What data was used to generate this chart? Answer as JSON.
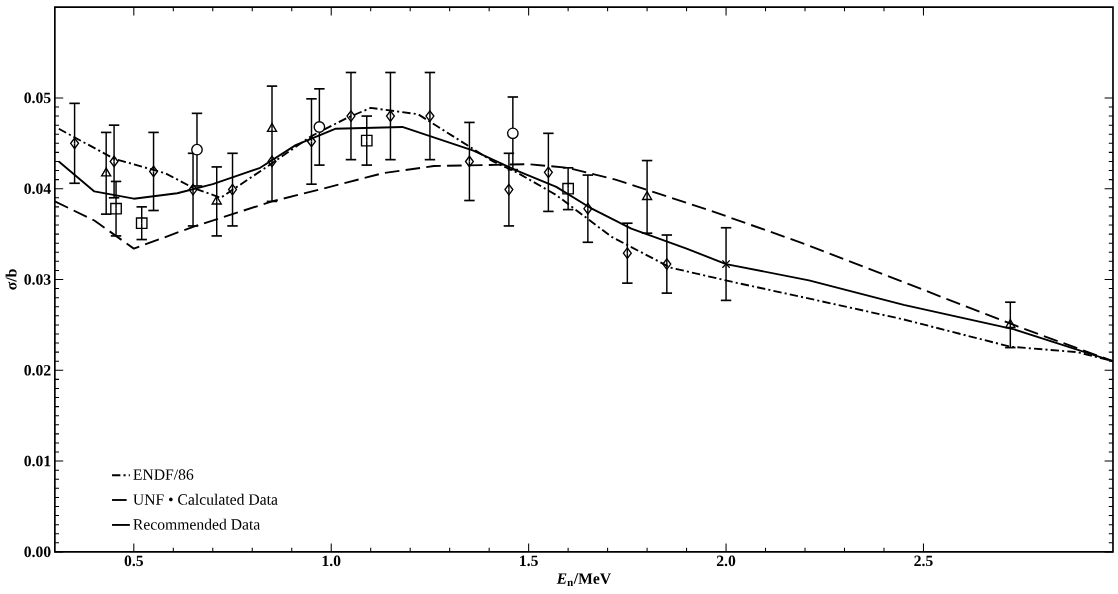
{
  "chart_data": {
    "type": "scatter",
    "xlabel": "*E*$_{n}$/MeV",
    "ylabel": "σ/b",
    "xlim": [
      0.3,
      2.98
    ],
    "ylim": [
      0,
      0.06
    ],
    "xticks": [
      0.5,
      {
        "value": 1.0,
        "label": "1.0"
      },
      1.5,
      {
        "value": 2.0,
        "label": "2.0"
      },
      2.5
    ],
    "yticks": [
      {
        "value": 0,
        "label": "0.00"
      },
      0.01,
      0.02,
      0.03,
      0.04,
      0.05
    ],
    "legend": "bottom left",
    "grid": false,
    "series": [
      {
        "name": "ENDF/86",
        "type": "line",
        "color": "#000000",
        "line_style": "dotted",
        "marker": "none",
        "x": [
          0.31,
          0.45,
          0.58,
          0.65,
          0.72,
          0.84,
          0.95,
          1.04,
          1.1,
          1.22,
          1.41,
          1.47,
          1.57,
          1.71,
          1.86,
          2.02,
          2.2,
          2.45,
          2.72,
          2.89,
          2.98
        ],
        "values": [
          0.0466,
          0.0433,
          0.0417,
          0.0401,
          0.039,
          0.0425,
          0.0458,
          0.0478,
          0.0489,
          0.0482,
          0.043,
          0.0418,
          0.0393,
          0.0347,
          0.0313,
          0.0297,
          0.028,
          0.0256,
          0.0226,
          0.022,
          0.021
        ]
      },
      {
        "name": "UNF • Calculated Data",
        "type": "line",
        "color": "#000000",
        "line_style": "dashed",
        "marker": "none",
        "x": [
          0.3,
          0.4,
          0.5,
          0.65,
          0.85,
          0.97,
          1.13,
          1.26,
          1.5,
          1.6,
          1.72,
          1.96,
          2.2,
          2.45,
          2.74,
          2.98
        ],
        "values": [
          0.0386,
          0.0365,
          0.0334,
          0.0358,
          0.0386,
          0.0399,
          0.0417,
          0.0425,
          0.0427,
          0.0423,
          0.041,
          0.0376,
          0.0339,
          0.0297,
          0.0248,
          0.021
        ]
      },
      {
        "name": "Recommended Data",
        "type": "line",
        "color": "#000000",
        "line_style": "solid",
        "marker": "none",
        "x": [
          0.31,
          0.4,
          0.5,
          0.61,
          0.7,
          0.82,
          0.91,
          1.01,
          1.18,
          1.36,
          1.47,
          1.57,
          1.66,
          1.76,
          1.9,
          2.0,
          2.21,
          2.45,
          2.73,
          2.98
        ],
        "values": [
          0.043,
          0.0397,
          0.0389,
          0.0395,
          0.0405,
          0.0423,
          0.0448,
          0.0466,
          0.0468,
          0.0442,
          0.042,
          0.0402,
          0.0378,
          0.0356,
          0.0334,
          0.0317,
          0.0299,
          0.0272,
          0.0245,
          0.021
        ]
      },
      {
        "color": "#000000",
        "marker": "diamond",
        "x": [
          0.35,
          0.45,
          0.55,
          0.65,
          0.75,
          0.85,
          0.95,
          1.05,
          1.15,
          1.25,
          1.35,
          1.45,
          1.55,
          1.65,
          1.75,
          1.85
        ],
        "values": [
          0.045,
          0.043,
          0.0419,
          0.0399,
          0.0399,
          0.043,
          0.0452,
          0.048,
          0.048,
          0.048,
          0.043,
          0.0399,
          0.0418,
          0.0378,
          0.0329,
          0.0317
        ],
        "errors": [
          0.0044,
          0.004,
          0.0043,
          0.004,
          0.004,
          null,
          0.0047,
          0.0048,
          0.0048,
          0.0048,
          0.0043,
          0.004,
          0.0043,
          0.0037,
          0.0033,
          0.0032
        ]
      },
      {
        "color": "#000000",
        "marker": "triangle",
        "x": [
          0.43,
          0.71,
          0.85,
          1.8,
          2.72
        ],
        "values": [
          0.0417,
          0.0386,
          0.0466,
          0.0391,
          0.025
        ],
        "errors": [
          0.0045,
          0.0038,
          [
            0.0386,
            0.0513
          ],
          0.004,
          0.0025
        ]
      },
      {
        "color": "#000000",
        "marker": "circle",
        "x": [
          0.66,
          0.97,
          1.46
        ],
        "values": [
          0.0443,
          0.0468,
          0.0461
        ],
        "errors": [
          0.004,
          0.0042,
          0.004
        ]
      },
      {
        "color": "#000000",
        "marker": "square",
        "x": [
          0.455,
          0.52,
          1.09,
          1.6
        ],
        "values": [
          0.0378,
          0.0362,
          0.0453,
          0.04
        ],
        "errors": [
          0.003,
          0.0018,
          0.0027,
          0.0023
        ]
      },
      {
        "color": "#000000",
        "marker": "cross",
        "x": [
          2.0
        ],
        "values": [
          0.0317
        ],
        "errors": [
          0.004
        ]
      }
    ]
  }
}
